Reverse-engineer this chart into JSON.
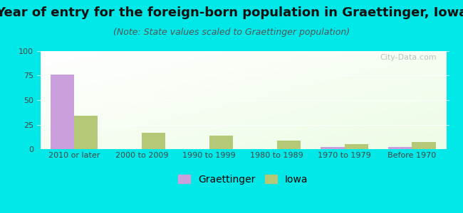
{
  "title": "Year of entry for the foreign-born population in Graettinger, Iowa",
  "subtitle": "(Note: State values scaled to Graettinger population)",
  "categories": [
    "2010 or later",
    "2000 to 2009",
    "1990 to 1999",
    "1980 to 1989",
    "1970 to 1979",
    "Before 1970"
  ],
  "graettinger_values": [
    76,
    0,
    0,
    0,
    2,
    2
  ],
  "iowa_values": [
    34,
    17,
    14,
    9,
    5,
    7
  ],
  "graettinger_color": "#c9a0dc",
  "iowa_color": "#b5c878",
  "background_outer": "#00e8e8",
  "ylim": [
    0,
    100
  ],
  "yticks": [
    0,
    25,
    50,
    75,
    100
  ],
  "title_fontsize": 13,
  "subtitle_fontsize": 9,
  "tick_fontsize": 8,
  "legend_fontsize": 10,
  "bar_width": 0.35,
  "watermark": "City-Data.com"
}
